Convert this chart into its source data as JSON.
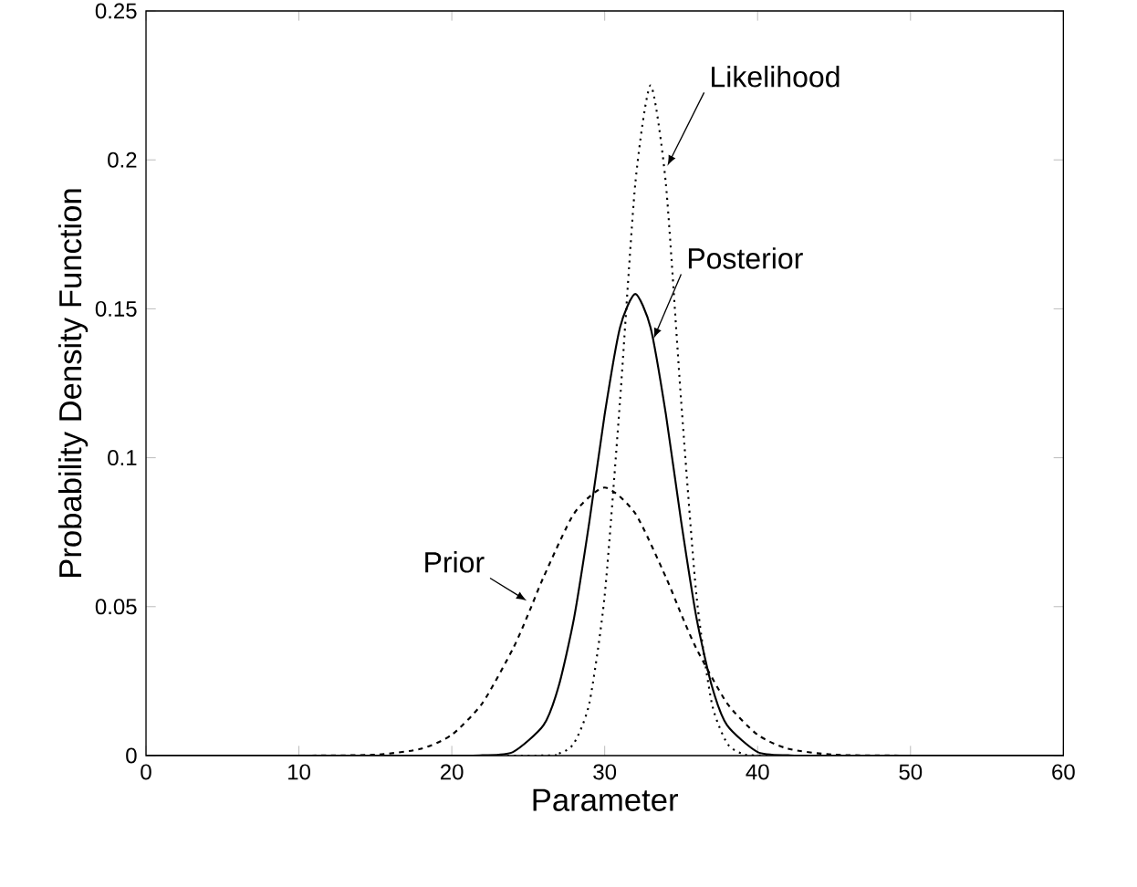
{
  "chart_data": {
    "type": "line",
    "xlabel": "Parameter",
    "ylabel": "Probability Density Function",
    "xlim": [
      0,
      60
    ],
    "xticks": [
      0,
      10,
      20,
      30,
      40,
      50,
      60
    ],
    "ylim": [
      0,
      0.25
    ],
    "yticks": [
      0,
      0.05,
      0.1,
      0.15,
      0.2,
      0.25
    ],
    "grid": false,
    "series": [
      {
        "color": "#000000",
        "line_style": "dashed",
        "x": [
          0,
          10,
          15,
          18,
          20,
          22,
          24,
          25,
          26,
          28,
          30,
          32,
          34,
          35,
          36,
          38,
          40,
          42,
          45,
          50,
          60
        ],
        "values": [
          0,
          0,
          0.0003,
          0.0023,
          0.007,
          0.0176,
          0.0359,
          0.0475,
          0.0599,
          0.0813,
          0.09,
          0.0813,
          0.0599,
          0.0475,
          0.0359,
          0.0176,
          0.007,
          0.0023,
          0.0003,
          0,
          0
        ]
      },
      {
        "color": "#000000",
        "line_style": "dotted",
        "x": [
          0,
          25,
          27,
          28,
          29,
          30,
          31,
          32,
          33,
          34,
          35,
          36,
          37,
          38,
          39,
          41,
          60
        ],
        "values": [
          0,
          0,
          0.0007,
          0.0042,
          0.0177,
          0.0538,
          0.119,
          0.192,
          0.225,
          0.192,
          0.119,
          0.0538,
          0.0177,
          0.0042,
          0.0007,
          0,
          0
        ]
      },
      {
        "color": "#000000",
        "line_style": "solid",
        "x": [
          0,
          20,
          22,
          24,
          26,
          27,
          28,
          29,
          30,
          31,
          32,
          33,
          34,
          35,
          36,
          37,
          38,
          40,
          42,
          44,
          60
        ],
        "values": [
          0,
          0,
          0.0001,
          0.0012,
          0.0102,
          0.0235,
          0.0463,
          0.0786,
          0.1146,
          0.1437,
          0.155,
          0.1437,
          0.1146,
          0.0786,
          0.0463,
          0.0235,
          0.0102,
          0.0012,
          0.0001,
          0,
          0
        ]
      }
    ],
    "annotations": [
      {
        "text": "Likelihood",
        "x": 34.1,
        "y": 0.198
      },
      {
        "text": "Posterior",
        "x": 33.2,
        "y": 0.14
      },
      {
        "text": "Prior",
        "x": 24.9,
        "y": 0.052
      }
    ]
  }
}
